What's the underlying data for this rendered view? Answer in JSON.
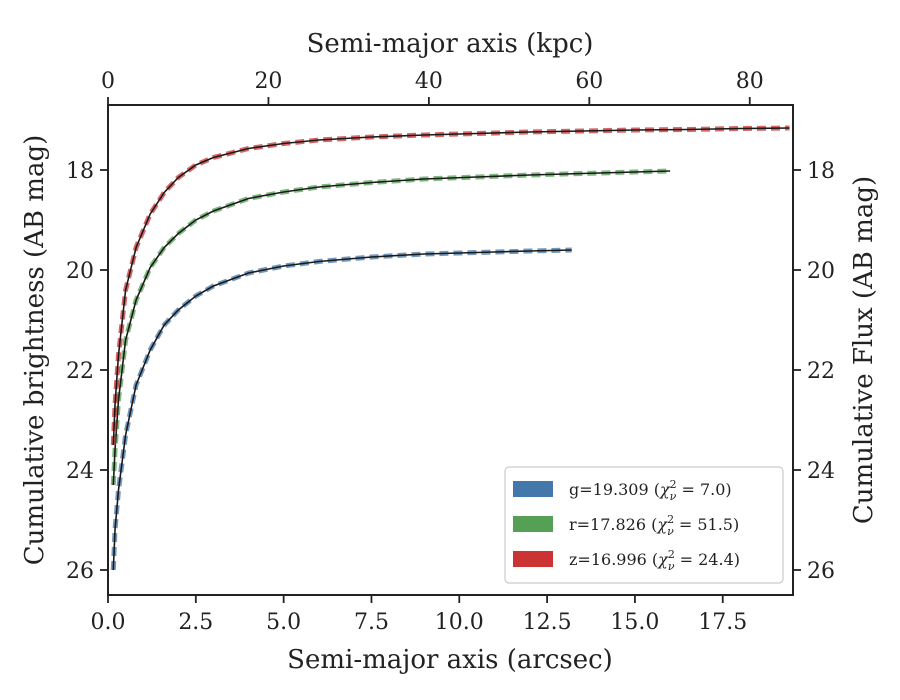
{
  "chart_data": {
    "type": "line",
    "xlabel_bottom": "Semi-major axis (arcsec)",
    "xlabel_top": "Semi-major axis (kpc)",
    "ylabel_left": "Cumulative brightness (AB mag)",
    "ylabel_right": "Cumulative Flux (AB mag)",
    "xlim": [
      0,
      19.5
    ],
    "ylim": [
      26.5,
      16.7
    ],
    "y_inverted": true,
    "x_top_scale_kpc_per_arcsec": 4.379,
    "x_ticks": [
      "0.0",
      "2.5",
      "5.0",
      "7.5",
      "10.0",
      "12.5",
      "15.0",
      "17.5"
    ],
    "x_tick_values": [
      0,
      2.5,
      5,
      7.5,
      10,
      12.5,
      15,
      17.5
    ],
    "x_top_ticks": [
      "0",
      "20",
      "40",
      "60",
      "80"
    ],
    "x_top_tick_values": [
      0,
      20,
      40,
      60,
      80
    ],
    "y_ticks": [
      "18",
      "20",
      "22",
      "24",
      "26"
    ],
    "y_tick_values": [
      18,
      20,
      22,
      24,
      26
    ],
    "grid": false,
    "legend_position": "bottom-right",
    "series": [
      {
        "name": "g=19.309 (χ²ν = 7.0)",
        "legend": {
          "prefix": "g=19.309 (",
          "chi": "χ",
          "sub": "ν",
          "sup": "2",
          "suffix": " = 7.0)"
        },
        "color": "#4477aa",
        "x": [
          0.15,
          0.2,
          0.3,
          0.5,
          0.8,
          1.2,
          1.6,
          2.0,
          2.5,
          3.0,
          4.0,
          5.0,
          6.0,
          7.5,
          9.0,
          10.0,
          11.0,
          12.0,
          13.2
        ],
        "y": [
          26.0,
          25.2,
          24.4,
          23.3,
          22.3,
          21.6,
          21.1,
          20.8,
          20.52,
          20.32,
          20.06,
          19.92,
          19.83,
          19.74,
          19.68,
          19.66,
          19.64,
          19.62,
          19.6
        ]
      },
      {
        "name": "r=17.826 (χ²ν = 51.5)",
        "legend": {
          "prefix": "r=17.826 (",
          "chi": "χ",
          "sub": "ν",
          "sup": "2",
          "suffix": " = 51.5)"
        },
        "color": "#55a055",
        "x": [
          0.15,
          0.2,
          0.3,
          0.5,
          0.8,
          1.2,
          1.6,
          2.0,
          2.5,
          3.0,
          4.0,
          5.0,
          6.0,
          7.5,
          9.0,
          10.5,
          12.0,
          13.5,
          15.0,
          16.0
        ],
        "y": [
          24.3,
          23.6,
          22.6,
          21.4,
          20.6,
          19.95,
          19.55,
          19.27,
          19.0,
          18.82,
          18.57,
          18.44,
          18.34,
          18.25,
          18.18,
          18.14,
          18.1,
          18.07,
          18.04,
          18.02
        ]
      },
      {
        "name": "z=16.996 (χ²ν = 24.4)",
        "legend": {
          "prefix": "z=16.996 (",
          "chi": "χ",
          "sub": "ν",
          "sup": "2",
          "suffix": " = 24.4)"
        },
        "color": "#cc3333",
        "x": [
          0.15,
          0.2,
          0.3,
          0.5,
          0.8,
          1.2,
          1.6,
          2.0,
          2.5,
          3.0,
          4.0,
          5.0,
          6.0,
          7.5,
          9.0,
          10.5,
          12.0,
          13.5,
          15.0,
          16.5,
          18.0,
          19.4
        ],
        "y": [
          23.5,
          22.7,
          21.7,
          20.4,
          19.55,
          18.88,
          18.45,
          18.15,
          17.9,
          17.75,
          17.57,
          17.47,
          17.4,
          17.34,
          17.3,
          17.27,
          17.24,
          17.22,
          17.2,
          17.19,
          17.17,
          17.16
        ]
      }
    ]
  }
}
